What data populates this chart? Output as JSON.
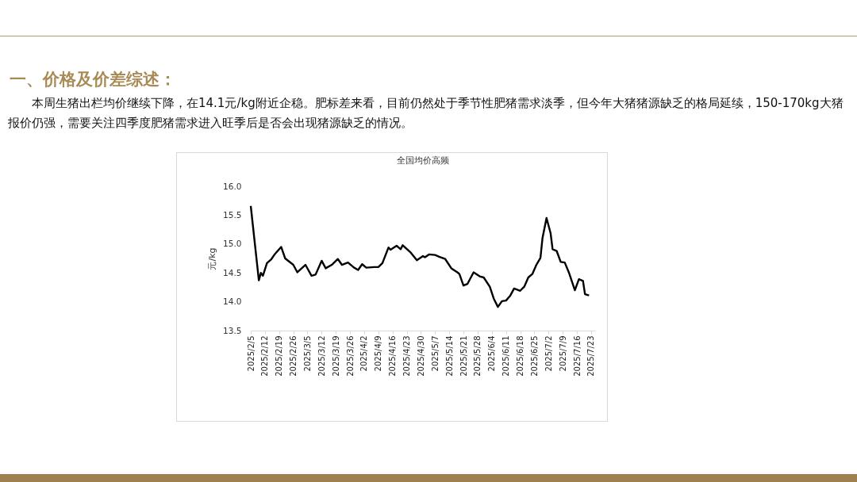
{
  "chart_data": {
    "type": "line",
    "title": "全国均价高频",
    "ylabel": "元/kg",
    "annotations": [
      "一、价格及价差综述：",
      "本周生猪出栏均价继续下降，在14.1元/kg附近企稳。肥标差来看，目前仍然处于季节性肥猪需求淡季，但今年大猪猪源缺乏的格局延续，150-170kg大猪报价仍强，需要关注四季度肥猪需求进入旺季后是否会出现猪源缺乏的情况。"
    ],
    "x": [
      "2025-02-05",
      "2025-02-09",
      "2025-02-10",
      "2025-02-11",
      "2025-02-13",
      "2025-02-15",
      "2025-02-17",
      "2025-02-20",
      "2025-02-22",
      "2025-02-26",
      "2025-02-28",
      "2025-03-04",
      "2025-03-07",
      "2025-03-09",
      "2025-03-12",
      "2025-03-14",
      "2025-03-17",
      "2025-03-20",
      "2025-03-22",
      "2025-03-25",
      "2025-03-28",
      "2025-03-30",
      "2025-04-01",
      "2025-04-03",
      "2025-04-07",
      "2025-04-09",
      "2025-04-11",
      "2025-04-14",
      "2025-04-15",
      "2025-04-18",
      "2025-04-20",
      "2025-04-21",
      "2025-04-25",
      "2025-04-28",
      "2025-05-01",
      "2025-05-02",
      "2025-05-04",
      "2025-05-07",
      "2025-05-09",
      "2025-05-12",
      "2025-05-15",
      "2025-05-18",
      "2025-05-19",
      "2025-05-21",
      "2025-05-23",
      "2025-05-26",
      "2025-05-29",
      "2025-05-31",
      "2025-06-03",
      "2025-06-05",
      "2025-06-07",
      "2025-06-09",
      "2025-06-11",
      "2025-06-13",
      "2025-06-15",
      "2025-06-18",
      "2025-06-20",
      "2025-06-22",
      "2025-06-24",
      "2025-06-26",
      "2025-06-28",
      "2025-06-29",
      "2025-07-01",
      "2025-07-03",
      "2025-07-04",
      "2025-07-06",
      "2025-07-08",
      "2025-07-10",
      "2025-07-12",
      "2025-07-15",
      "2025-07-17",
      "2025-07-19",
      "2025-07-20",
      "2025-07-22"
    ],
    "series": [
      {
        "color": "#000000",
        "values": [
          15.66,
          14.37,
          14.5,
          14.45,
          14.67,
          14.73,
          14.83,
          14.95,
          14.75,
          14.64,
          14.51,
          14.64,
          14.45,
          14.47,
          14.71,
          14.58,
          14.64,
          14.74,
          14.64,
          14.68,
          14.59,
          14.55,
          14.65,
          14.59,
          14.6,
          14.6,
          14.67,
          14.94,
          14.9,
          14.97,
          14.91,
          14.98,
          14.85,
          14.72,
          14.79,
          14.77,
          14.82,
          14.81,
          14.78,
          14.74,
          14.58,
          14.51,
          14.48,
          14.28,
          14.31,
          14.51,
          14.44,
          14.42,
          14.26,
          14.05,
          13.91,
          14.01,
          14.02,
          14.1,
          14.23,
          14.19,
          14.26,
          14.42,
          14.48,
          14.64,
          14.76,
          15.1,
          15.45,
          15.19,
          14.91,
          14.88,
          14.69,
          14.68,
          14.51,
          14.2,
          14.39,
          14.36,
          14.13,
          14.11
        ]
      }
    ],
    "xlim": [
      "2025-02-05",
      "2025-07-25"
    ],
    "xticks": [
      {
        "value": "2025-02-05",
        "label": "2025/2/5"
      },
      {
        "value": "2025-02-12",
        "label": "2025/2/12"
      },
      {
        "value": "2025-02-19",
        "label": "2025/2/19"
      },
      {
        "value": "2025-02-26",
        "label": "2025/2/26"
      },
      {
        "value": "2025-03-05",
        "label": "2025/3/5"
      },
      {
        "value": "2025-03-12",
        "label": "2025/3/12"
      },
      {
        "value": "2025-03-19",
        "label": "2025/3/19"
      },
      {
        "value": "2025-03-26",
        "label": "2025/3/26"
      },
      {
        "value": "2025-04-02",
        "label": "2025/4/2"
      },
      {
        "value": "2025-04-09",
        "label": "2025/4/9"
      },
      {
        "value": "2025-04-16",
        "label": "2025/4/16"
      },
      {
        "value": "2025-04-23",
        "label": "2025/4/23"
      },
      {
        "value": "2025-04-30",
        "label": "2025/4/30"
      },
      {
        "value": "2025-05-07",
        "label": "2025/5/7"
      },
      {
        "value": "2025-05-14",
        "label": "2025/5/14"
      },
      {
        "value": "2025-05-21",
        "label": "2025/5/21"
      },
      {
        "value": "2025-05-28",
        "label": "2025/5/28"
      },
      {
        "value": "2025-06-04",
        "label": "2025/6/4"
      },
      {
        "value": "2025-06-11",
        "label": "2025/6/11"
      },
      {
        "value": "2025-06-18",
        "label": "2025/6/18"
      },
      {
        "value": "2025-06-25",
        "label": "2025/6/25"
      },
      {
        "value": "2025-07-02",
        "label": "2025/7/2"
      },
      {
        "value": "2025-07-09",
        "label": "2025/7/9"
      },
      {
        "value": "2025-07-16",
        "label": "2025/7/16"
      },
      {
        "value": "2025-07-23",
        "label": "2025/7/23"
      }
    ],
    "ylim": [
      13.5,
      16.0
    ],
    "yticks": [
      {
        "value": 13.5,
        "label": "13.5"
      },
      {
        "value": 14,
        "label": "14.0"
      },
      {
        "value": 14.5,
        "label": "14.5"
      },
      {
        "value": 15,
        "label": "15.0"
      },
      {
        "value": 15.5,
        "label": "15.5"
      },
      {
        "value": 16,
        "label": "16.0"
      }
    ],
    "grid": false,
    "marker": "none",
    "line_style": "solid"
  }
}
